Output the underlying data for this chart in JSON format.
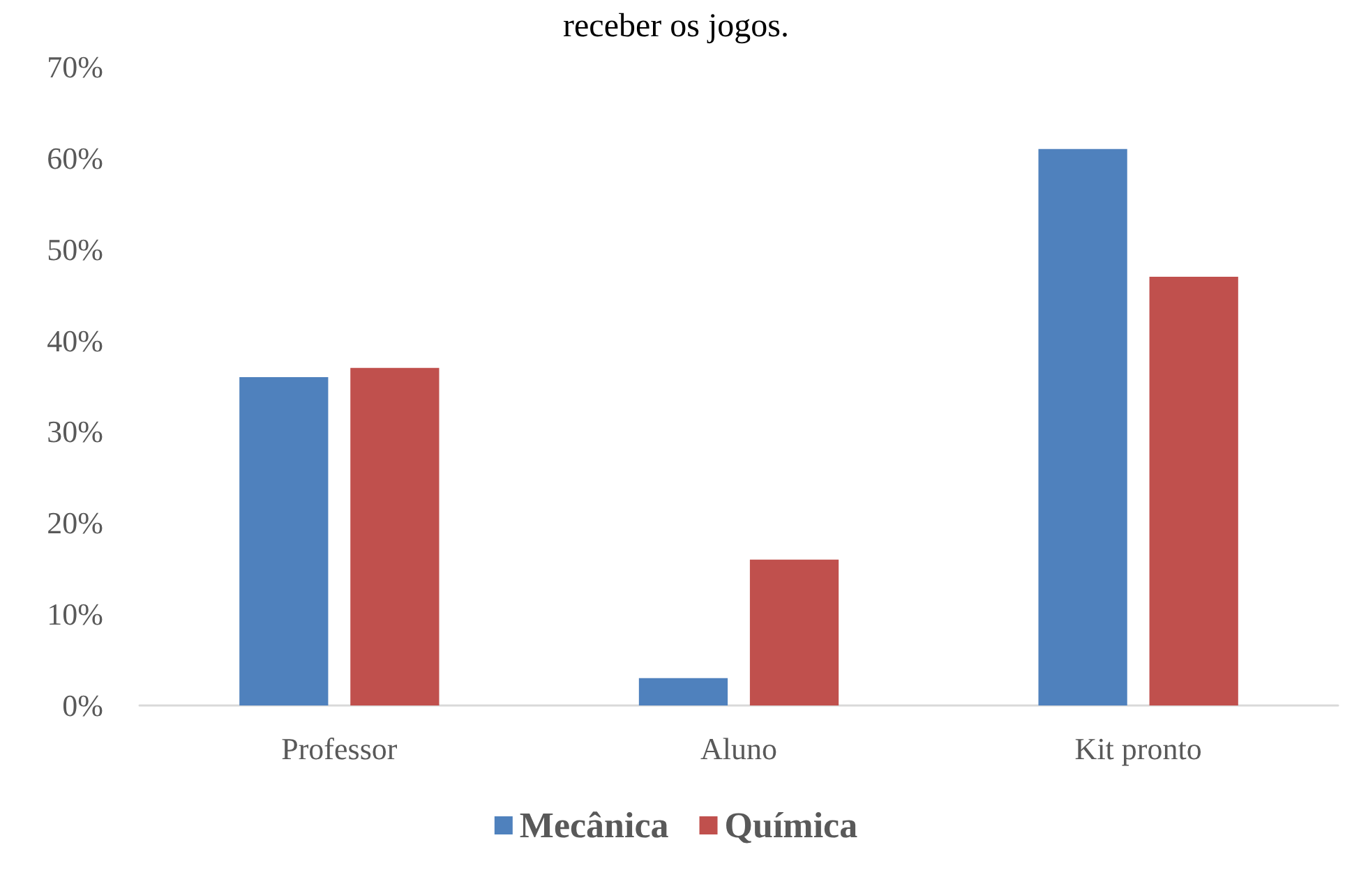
{
  "chart_data": {
    "type": "bar",
    "title": "receber os jogos.",
    "categories": [
      "Professor",
      "Aluno",
      "Kit pronto"
    ],
    "series": [
      {
        "name": "Mecânica",
        "color": "#4f81bd",
        "values": [
          36,
          3,
          61
        ]
      },
      {
        "name": "Química",
        "color": "#c0504d",
        "values": [
          37,
          16,
          47
        ]
      }
    ],
    "ylim": [
      0,
      70
    ],
    "yticks": [
      {
        "value": 0,
        "label": "0%"
      },
      {
        "value": 10,
        "label": "10%"
      },
      {
        "value": 20,
        "label": "20%"
      },
      {
        "value": 30,
        "label": "30%"
      },
      {
        "value": 40,
        "label": "40%"
      },
      {
        "value": 50,
        "label": "50%"
      },
      {
        "value": 60,
        "label": "60%"
      },
      {
        "value": 70,
        "label": "70%"
      }
    ],
    "grid": false,
    "legend": "bottom"
  }
}
